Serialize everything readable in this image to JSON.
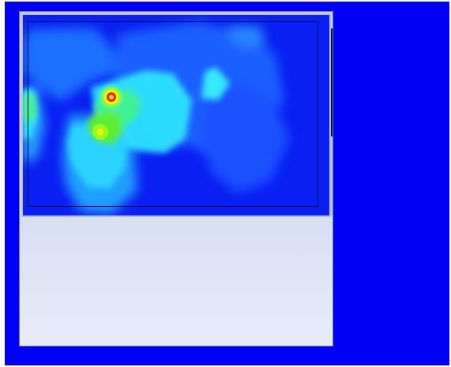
{
  "window": {
    "title": ""
  },
  "heatmap": {
    "icon": "heatmap-image",
    "colors": {
      "background": "#0000f4",
      "low": "#1a2cff",
      "mid_low": "#24a8ff",
      "mid": "#33f0ff",
      "mid_high": "#31f59a",
      "high": "#b7ff00",
      "peak": "#ff2a00",
      "core": "#ffff00"
    }
  }
}
